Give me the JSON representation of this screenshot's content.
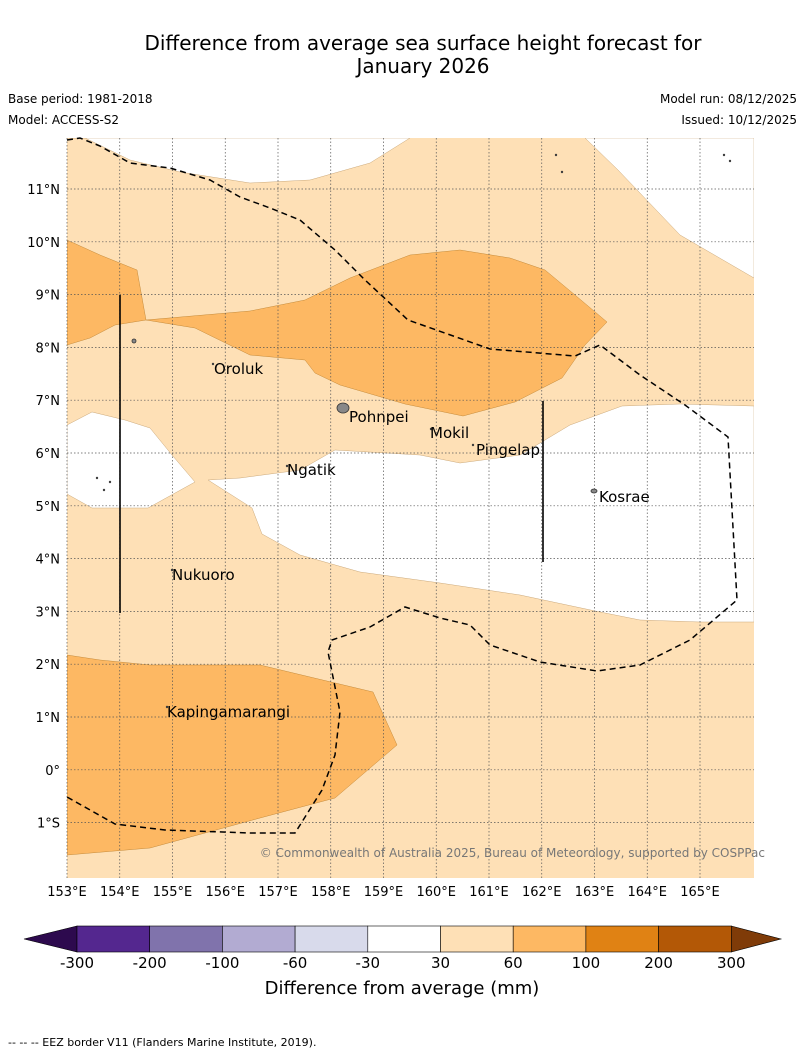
{
  "header": {
    "title_line1": "Difference from average sea surface height forecast for",
    "title_line2": "January 2026",
    "base_period": "Base period: 1981-2018",
    "model": "Model: ACCESS-S2",
    "model_run": "Model run: 08/12/2025",
    "issued": "Issued: 10/12/2025"
  },
  "map": {
    "lon_labels": [
      "153°E",
      "154°E",
      "155°E",
      "156°E",
      "157°E",
      "158°E",
      "159°E",
      "160°E",
      "161°E",
      "162°E",
      "163°E",
      "164°E",
      "165°E"
    ],
    "lat_labels": [
      "11°N",
      "10°N",
      "9°N",
      "8°N",
      "7°N",
      "6°N",
      "5°N",
      "4°N",
      "3°N",
      "2°N",
      "1°N",
      "0°",
      "1°S"
    ],
    "places": [
      "Oroluk",
      "Pohnpei",
      "Mokil",
      "Pingelap",
      "Ngatik",
      "Kosrae",
      "Nukuoro",
      "Kapingamarangi"
    ],
    "copyright": "© Commonwealth of Australia 2025, Bureau of Meteorology, supported by COSPPac"
  },
  "colorbar": {
    "title": "Difference from average (mm)",
    "ticks": [
      "-300",
      "-200",
      "-100",
      "-60",
      "-30",
      "30",
      "60",
      "100",
      "200",
      "300"
    ],
    "colors": [
      "#2d0a4e",
      "#54278f",
      "#8073ac",
      "#b2abd2",
      "#d8daeb",
      "#ffffff",
      "#fee0b6",
      "#fdb863",
      "#e08214",
      "#b35806",
      "#7f3b08"
    ]
  },
  "footnote": "-- -- -- EEZ border V11 (Flanders Marine Institute, 2019)."
}
